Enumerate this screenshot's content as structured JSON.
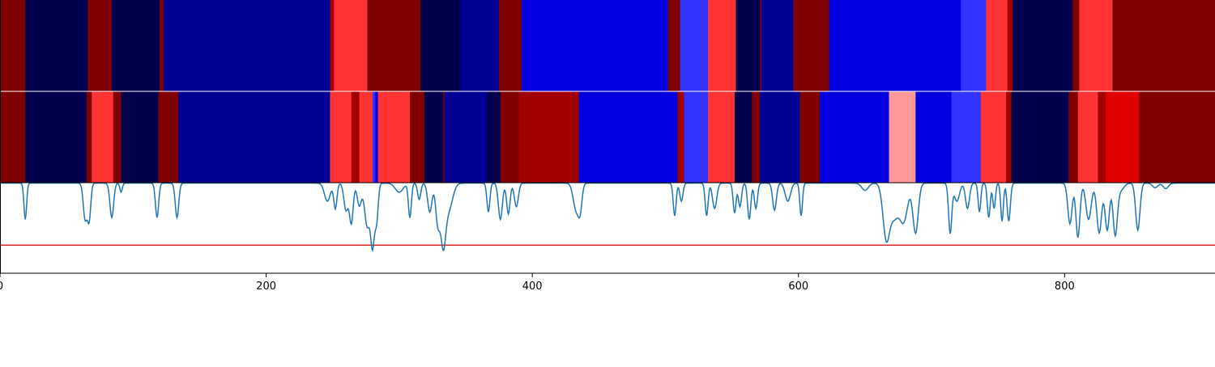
{
  "chart_data": {
    "type": "heatmap",
    "xlim": [
      0,
      913
    ],
    "x_ticks": [
      0,
      200,
      400,
      600,
      800
    ],
    "x_tick_labels": [
      "0",
      "200",
      "400",
      "600",
      "800"
    ],
    "colormap": "seismic",
    "tracks": [
      {
        "segments": [
          {
            "x0": 0,
            "x1": 19,
            "color": "#7f0000"
          },
          {
            "x0": 19,
            "x1": 66,
            "color": "#00004c"
          },
          {
            "x0": 66,
            "x1": 84,
            "color": "#7f0000"
          },
          {
            "x0": 84,
            "x1": 120,
            "color": "#00004c"
          },
          {
            "x0": 120,
            "x1": 123,
            "color": "#7f0000"
          },
          {
            "x0": 123,
            "x1": 248,
            "color": "#000095"
          },
          {
            "x0": 248,
            "x1": 251,
            "color": "#a00000"
          },
          {
            "x0": 251,
            "x1": 276,
            "color": "#ff3333"
          },
          {
            "x0": 276,
            "x1": 316,
            "color": "#7f0000"
          },
          {
            "x0": 316,
            "x1": 346,
            "color": "#00004c"
          },
          {
            "x0": 346,
            "x1": 375,
            "color": "#000095"
          },
          {
            "x0": 375,
            "x1": 392,
            "color": "#7f0000"
          },
          {
            "x0": 392,
            "x1": 502,
            "color": "#0000e0"
          },
          {
            "x0": 502,
            "x1": 511,
            "color": "#7f0000"
          },
          {
            "x0": 511,
            "x1": 532,
            "color": "#3333ff"
          },
          {
            "x0": 532,
            "x1": 553,
            "color": "#ff3333"
          },
          {
            "x0": 553,
            "x1": 571,
            "color": "#00004c"
          },
          {
            "x0": 571,
            "x1": 572,
            "color": "#7f0000"
          },
          {
            "x0": 572,
            "x1": 596,
            "color": "#000095"
          },
          {
            "x0": 596,
            "x1": 623,
            "color": "#7f0000"
          },
          {
            "x0": 623,
            "x1": 722,
            "color": "#0000e0"
          },
          {
            "x0": 722,
            "x1": 741,
            "color": "#3333ff"
          },
          {
            "x0": 741,
            "x1": 757,
            "color": "#ff3333"
          },
          {
            "x0": 757,
            "x1": 761,
            "color": "#a00000"
          },
          {
            "x0": 761,
            "x1": 806,
            "color": "#00004c"
          },
          {
            "x0": 806,
            "x1": 811,
            "color": "#7f0000"
          },
          {
            "x0": 811,
            "x1": 836,
            "color": "#ff3333"
          },
          {
            "x0": 836,
            "x1": 913,
            "color": "#7f0000"
          }
        ]
      },
      {
        "segments": [
          {
            "x0": 0,
            "x1": 19,
            "color": "#7f0000"
          },
          {
            "x0": 19,
            "x1": 65,
            "color": "#00004c"
          },
          {
            "x0": 65,
            "x1": 69,
            "color": "#7f0000"
          },
          {
            "x0": 69,
            "x1": 85,
            "color": "#ff3333"
          },
          {
            "x0": 85,
            "x1": 91,
            "color": "#7f0000"
          },
          {
            "x0": 91,
            "x1": 119,
            "color": "#00004c"
          },
          {
            "x0": 119,
            "x1": 134,
            "color": "#7f0000"
          },
          {
            "x0": 134,
            "x1": 248,
            "color": "#000095"
          },
          {
            "x0": 248,
            "x1": 264,
            "color": "#ff3333"
          },
          {
            "x0": 264,
            "x1": 270,
            "color": "#a00000"
          },
          {
            "x0": 270,
            "x1": 280,
            "color": "#ff3333"
          },
          {
            "x0": 280,
            "x1": 282,
            "color": "#3333ff"
          },
          {
            "x0": 282,
            "x1": 284,
            "color": "#0000e0"
          },
          {
            "x0": 284,
            "x1": 308,
            "color": "#ff3333"
          },
          {
            "x0": 308,
            "x1": 319,
            "color": "#7f0000"
          },
          {
            "x0": 319,
            "x1": 333,
            "color": "#00004c"
          },
          {
            "x0": 333,
            "x1": 334,
            "color": "#7f0000"
          },
          {
            "x0": 334,
            "x1": 366,
            "color": "#000095"
          },
          {
            "x0": 366,
            "x1": 376,
            "color": "#00004c"
          },
          {
            "x0": 376,
            "x1": 390,
            "color": "#7f0000"
          },
          {
            "x0": 390,
            "x1": 435,
            "color": "#a00000"
          },
          {
            "x0": 435,
            "x1": 509,
            "color": "#0000e0"
          },
          {
            "x0": 509,
            "x1": 514,
            "color": "#a00000"
          },
          {
            "x0": 514,
            "x1": 532,
            "color": "#3333ff"
          },
          {
            "x0": 532,
            "x1": 552,
            "color": "#ff3333"
          },
          {
            "x0": 552,
            "x1": 565,
            "color": "#00004c"
          },
          {
            "x0": 565,
            "x1": 571,
            "color": "#7f0000"
          },
          {
            "x0": 571,
            "x1": 601,
            "color": "#000095"
          },
          {
            "x0": 601,
            "x1": 616,
            "color": "#7f0000"
          },
          {
            "x0": 616,
            "x1": 668,
            "color": "#0000e0"
          },
          {
            "x0": 668,
            "x1": 688,
            "color": "#ff9999"
          },
          {
            "x0": 688,
            "x1": 715,
            "color": "#0000e0"
          },
          {
            "x0": 715,
            "x1": 737,
            "color": "#3333ff"
          },
          {
            "x0": 737,
            "x1": 756,
            "color": "#ff3333"
          },
          {
            "x0": 756,
            "x1": 760,
            "color": "#a00000"
          },
          {
            "x0": 760,
            "x1": 803,
            "color": "#00004c"
          },
          {
            "x0": 803,
            "x1": 810,
            "color": "#7f0000"
          },
          {
            "x0": 810,
            "x1": 825,
            "color": "#ff3333"
          },
          {
            "x0": 825,
            "x1": 831,
            "color": "#a00000"
          },
          {
            "x0": 831,
            "x1": 856,
            "color": "#e00000"
          },
          {
            "x0": 856,
            "x1": 913,
            "color": "#7f0000"
          }
        ]
      }
    ],
    "line_panel": {
      "ylim": [
        0,
        1
      ],
      "threshold": 0.31,
      "threshold_color": "#d62728",
      "line_color": "#1f77b4",
      "dips": [
        [
          19,
          0.4,
          1.0
        ],
        [
          64,
          0.4,
          1.4
        ],
        [
          67,
          0.4,
          1.2
        ],
        [
          84,
          0.38,
          1.4
        ],
        [
          91,
          0.1,
          0.9
        ],
        [
          118,
          0.38,
          1.2
        ],
        [
          133,
          0.38,
          1.3
        ],
        [
          246,
          0.2,
          2.2
        ],
        [
          252,
          0.28,
          1.2
        ],
        [
          260,
          0.3,
          1.6
        ],
        [
          264,
          0.44,
          1.4
        ],
        [
          270,
          0.25,
          1.6
        ],
        [
          276,
          0.48,
          2.0
        ],
        [
          280,
          0.66,
          1.4
        ],
        [
          283,
          0.4,
          1.2
        ],
        [
          300,
          0.1,
          3.0
        ],
        [
          308,
          0.38,
          1.1
        ],
        [
          315,
          0.18,
          1.2
        ],
        [
          323,
          0.32,
          1.6
        ],
        [
          329,
          0.44,
          1.6
        ],
        [
          333,
          0.6,
          1.8
        ],
        [
          337,
          0.3,
          3.0
        ],
        [
          367,
          0.32,
          1.1
        ],
        [
          376,
          0.4,
          1.5
        ],
        [
          382,
          0.34,
          1.3
        ],
        [
          388,
          0.26,
          1.5
        ],
        [
          433,
          0.3,
          2.2
        ],
        [
          436,
          0.24,
          1.4
        ],
        [
          507,
          0.36,
          1.1
        ],
        [
          512,
          0.2,
          1.2
        ],
        [
          531,
          0.36,
          1.1
        ],
        [
          537,
          0.28,
          1.6
        ],
        [
          552,
          0.33,
          1.1
        ],
        [
          556,
          0.26,
          1.2
        ],
        [
          563,
          0.4,
          1.2
        ],
        [
          568,
          0.28,
          1.2
        ],
        [
          582,
          0.3,
          1.4
        ],
        [
          592,
          0.2,
          2.0
        ],
        [
          602,
          0.36,
          1.0
        ],
        [
          650,
          0.08,
          2.5
        ],
        [
          666,
          0.6,
          2.5
        ],
        [
          672,
          0.35,
          3.0
        ],
        [
          679,
          0.42,
          3.0
        ],
        [
          688,
          0.55,
          2.0
        ],
        [
          714,
          0.55,
          1.2
        ],
        [
          719,
          0.2,
          2.0
        ],
        [
          727,
          0.28,
          1.5
        ],
        [
          736,
          0.32,
          1.0
        ],
        [
          743,
          0.38,
          1.1
        ],
        [
          747,
          0.28,
          1.0
        ],
        [
          753,
          0.42,
          1.0
        ],
        [
          758,
          0.42,
          1.2
        ],
        [
          804,
          0.45,
          1.6
        ],
        [
          810,
          0.6,
          1.5
        ],
        [
          818,
          0.4,
          2.0
        ],
        [
          826,
          0.55,
          1.8
        ],
        [
          832,
          0.52,
          1.6
        ],
        [
          838,
          0.56,
          1.6
        ],
        [
          842,
          0.08,
          2.5
        ],
        [
          855,
          0.52,
          1.6
        ],
        [
          868,
          0.05,
          2.0
        ],
        [
          876,
          0.06,
          2.0
        ]
      ]
    }
  }
}
